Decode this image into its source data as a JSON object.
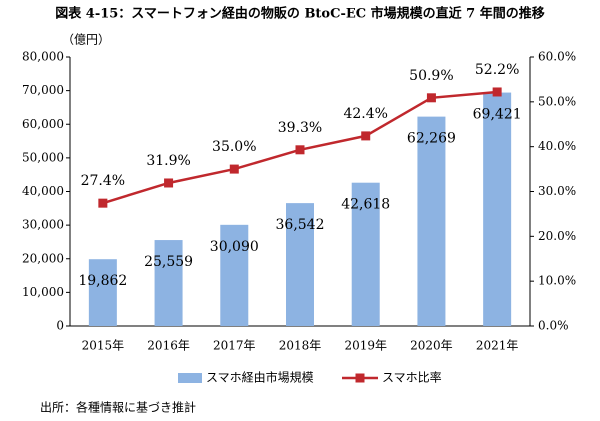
{
  "chart_data": {
    "type": "combo",
    "title": "図表 4-15：スマートフォン経由の物販の BtoC-EC 市場規模の直近 7 年間の推移",
    "y_label": "（億円）",
    "source": "出所：各種情報に基づき推計",
    "categories": [
      "2015年",
      "2016年",
      "2017年",
      "2018年",
      "2019年",
      "2020年",
      "2021年"
    ],
    "series": [
      {
        "name": "スマホ経由市場規模",
        "type": "bar",
        "color": "#8db3e2",
        "values": [
          19862,
          25559,
          30090,
          36542,
          42618,
          62269,
          69421
        ],
        "value_labels": [
          "19,862",
          "25,559",
          "30,090",
          "36,542",
          "42,618",
          "62,269",
          "69,421"
        ]
      },
      {
        "name": "スマホ比率",
        "type": "line",
        "axis": "y2",
        "color": "#c0282d",
        "values": [
          27.4,
          31.9,
          35.0,
          39.3,
          42.4,
          50.9,
          52.2
        ],
        "value_labels": [
          "27.4%",
          "31.9%",
          "35.0%",
          "39.3%",
          "42.4%",
          "50.9%",
          "52.2%"
        ]
      }
    ],
    "ylim": [
      0,
      80000
    ],
    "yticks": [
      0,
      {
        "value": 10000,
        "label": "10,000"
      },
      {
        "value": 20000,
        "label": "20,000"
      },
      {
        "value": 30000,
        "label": "30,000"
      },
      {
        "value": 40000,
        "label": "40,000"
      },
      {
        "value": 50000,
        "label": "50,000"
      },
      {
        "value": 60000,
        "label": "60,000"
      },
      {
        "value": 70000,
        "label": "70,000"
      },
      {
        "value": 80000,
        "label": "80,000"
      }
    ],
    "y2lim": [
      0,
      60
    ],
    "y2ticks": [
      {
        "value": 0,
        "label": "0.0%"
      },
      {
        "value": 10,
        "label": "10.0%"
      },
      {
        "value": 20,
        "label": "20.0%"
      },
      {
        "value": 30,
        "label": "30.0%"
      },
      {
        "value": 40,
        "label": "40.0%"
      },
      {
        "value": 50,
        "label": "50.0%"
      },
      {
        "value": 60,
        "label": "60.0%"
      }
    ],
    "grid": false,
    "legend": "bottom"
  }
}
